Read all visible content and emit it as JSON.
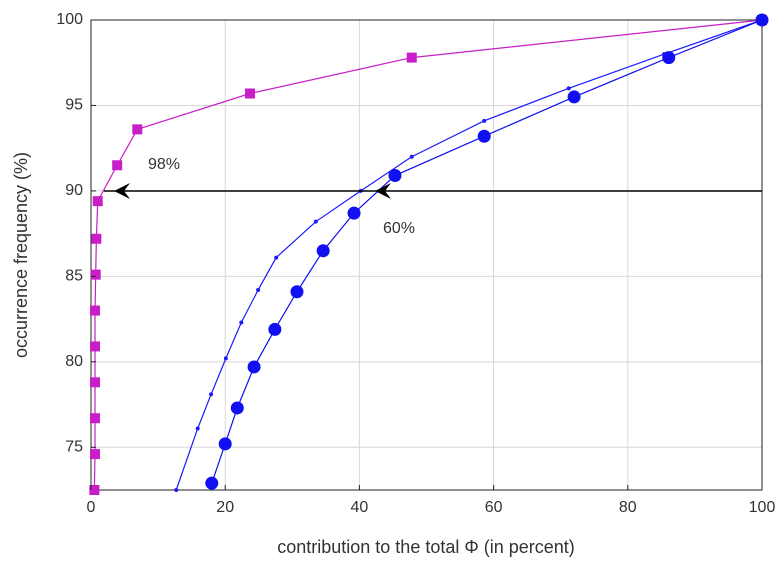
{
  "chart_data": {
    "type": "line",
    "xlabel": "contribution to the total Φ (in percent)",
    "ylabel": "occurrence frequency (%)",
    "xlim": [
      0,
      100
    ],
    "ylim": [
      72.5,
      100
    ],
    "xticks": [
      0,
      20,
      40,
      60,
      80,
      100
    ],
    "yticks": [
      75,
      80,
      85,
      90,
      95,
      100
    ],
    "grid": true,
    "annotations": [
      "98%",
      "60%"
    ],
    "series": [
      {
        "color": "#c81ec8",
        "marker": "square",
        "x": [
          0.5,
          0.6,
          0.6,
          0.6,
          0.6,
          0.6,
          0.7,
          0.8,
          1.0,
          3.9,
          6.9,
          23.7,
          47.8,
          100
        ],
        "values": [
          72.5,
          74.6,
          76.7,
          78.8,
          80.9,
          83.0,
          85.1,
          87.2,
          89.4,
          91.5,
          93.6,
          95.7,
          97.8,
          100
        ]
      },
      {
        "color": "#1a1aff",
        "marker": "dot",
        "x": [
          12.7,
          15.9,
          17.9,
          20.1,
          22.4,
          24.9,
          27.6,
          33.5,
          40.2,
          47.8,
          58.6,
          71.2,
          85.4,
          100
        ],
        "values": [
          72.5,
          76.1,
          78.1,
          80.2,
          82.3,
          84.2,
          86.1,
          88.2,
          90.0,
          92.0,
          94.1,
          96.0,
          98.0,
          100
        ]
      },
      {
        "color": "#1010f0",
        "marker": "circle",
        "x": [
          18.0,
          20.0,
          21.8,
          24.3,
          27.4,
          30.7,
          34.6,
          39.2,
          45.3,
          58.6,
          72.0,
          86.1,
          100
        ],
        "values": [
          72.9,
          75.2,
          77.3,
          79.7,
          81.9,
          84.1,
          86.5,
          88.7,
          90.9,
          93.2,
          95.5,
          97.8,
          100
        ]
      }
    ]
  }
}
